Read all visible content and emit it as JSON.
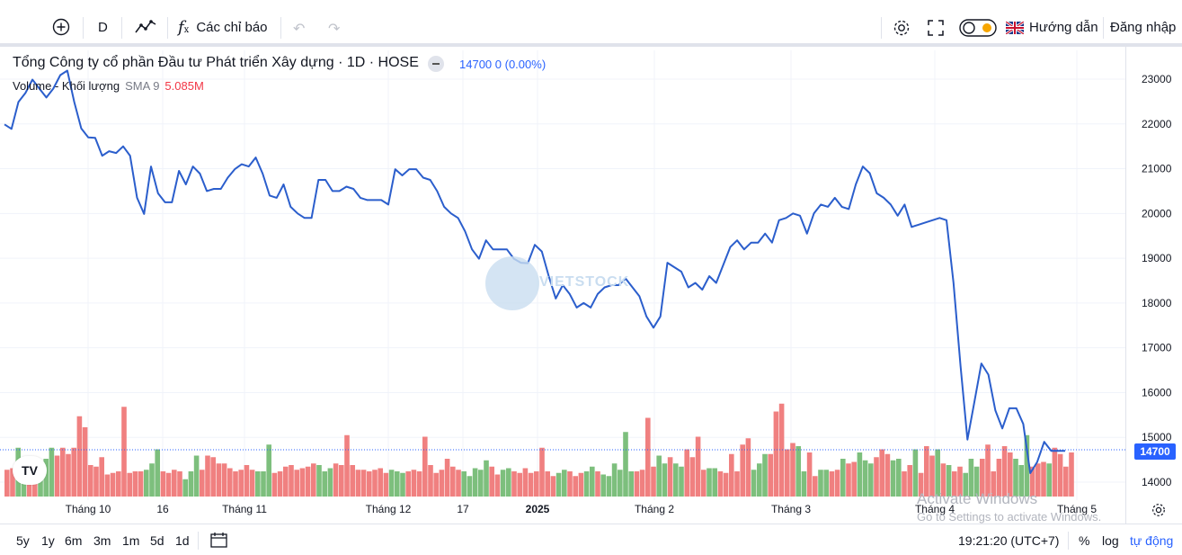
{
  "toolbar": {
    "interval": "D",
    "indicators_label": "Các chỉ báo",
    "guide_label": "Hướng dẫn",
    "login_label": "Đăng nhập"
  },
  "legend": {
    "title": "Tổng Công ty cổ phần Đầu tư Phát triển Xây dựng · 1D · HOSE",
    "price": "14700",
    "change": "0 (0.00%)",
    "volume_label": "Volume - Khối lượng",
    "sma_label": "SMA 9",
    "volume_value": "5.085M"
  },
  "price_tag": "14700",
  "watermark": {
    "logo_text": "VIETSTOCK",
    "os_line1": "Activate Windows",
    "os_line2": "Go to Settings to activate Windows."
  },
  "bottom": {
    "ranges": [
      "5y",
      "1y",
      "6m",
      "3m",
      "1m",
      "5d",
      "1d"
    ],
    "time": "19:21:20 (UTC+7)",
    "percent": "%",
    "log": "log",
    "auto": "tự động"
  },
  "colors": {
    "line": "#2b5ecc",
    "up_volume": "#7dbf7d",
    "down_volume": "#f08080",
    "accent": "#2962ff"
  },
  "chart_data": {
    "type": "line",
    "y_ticks": [
      14000,
      15000,
      16000,
      17000,
      18000,
      19000,
      20000,
      21000,
      22000,
      23000
    ],
    "ylim": [
      13700,
      23700
    ],
    "x_ticks": [
      "Tháng 10",
      "16",
      "Tháng 11",
      "Tháng 12",
      "17",
      "2025",
      "Tháng 2",
      "Tháng 3",
      "Tháng 4",
      "Tháng 5"
    ],
    "last_price": 14700,
    "series": [
      {
        "values": [
          21990,
          21890,
          22490,
          22690,
          22990,
          22790,
          22590,
          22790,
          23090,
          23190,
          22490,
          21900,
          21700,
          21690,
          21290,
          21390,
          21350,
          21500,
          21290,
          20350,
          19990,
          21050,
          20450,
          20250,
          20250,
          20950,
          20650,
          21050,
          20890,
          20500,
          20550,
          20550,
          20800,
          20990,
          21100,
          21050,
          21250,
          20890,
          20400,
          20350,
          20650,
          20150,
          20000,
          19900,
          19900,
          20750,
          20750,
          20500,
          20500,
          20600,
          20550,
          20350,
          20300,
          20300,
          20300,
          20200,
          20990,
          20850,
          20990,
          20990,
          20800,
          20750,
          20500,
          20150,
          20000,
          19900,
          19600,
          19200,
          18990,
          19400,
          19200,
          19200,
          19200,
          18990,
          18900,
          18890,
          19300,
          19150,
          18600,
          18100,
          18400,
          18200,
          17900,
          18000,
          17900,
          18200,
          18350,
          18400,
          18400,
          18550,
          18350,
          18150,
          17700,
          17450,
          17700,
          18900,
          18800,
          18700,
          18350,
          18450,
          18300,
          18600,
          18450,
          18850,
          19250,
          19400,
          19200,
          19350,
          19350,
          19550,
          19350,
          19850,
          19900,
          20000,
          19950,
          19550,
          20000,
          20200,
          20150,
          20350,
          20150,
          20100,
          20650,
          21050,
          20900,
          20450,
          20350,
          20200,
          19950,
          20200,
          19700,
          19750,
          19800,
          19850,
          19900,
          19850,
          18450,
          16600,
          14950,
          15800,
          16650,
          16400,
          15600,
          15200,
          15650,
          15650,
          15300,
          14200,
          14450,
          14900,
          14700,
          14700,
          14700
        ]
      }
    ],
    "volume": {
      "values": [
        1.7,
        1.8,
        3.1,
        2.0,
        1.8,
        1.9,
        2.1,
        2.4,
        3.1,
        2.6,
        3.1,
        2.7,
        3.1,
        5.1,
        4.4,
        2.0,
        1.9,
        2.5,
        1.4,
        1.5,
        1.6,
        5.7,
        1.5,
        1.6,
        1.6,
        1.7,
        2.1,
        3.0,
        1.6,
        1.5,
        1.7,
        1.6,
        1.1,
        1.6,
        2.6,
        1.7,
        2.6,
        2.5,
        2.1,
        2.1,
        1.8,
        1.6,
        1.7,
        2.0,
        1.7,
        1.6,
        1.6,
        3.3,
        1.5,
        1.6,
        1.9,
        2.0,
        1.7,
        1.8,
        1.9,
        2.1,
        2.0,
        1.6,
        1.8,
        2.1,
        2.0,
        3.9,
        2.0,
        1.7,
        1.7,
        1.6,
        1.7,
        1.8,
        1.5,
        1.7,
        1.6,
        1.5,
        1.6,
        1.7,
        1.6,
        3.8,
        2.0,
        1.5,
        1.7,
        2.4,
        1.9,
        1.7,
        1.6,
        1.3,
        1.8,
        1.7,
        2.3,
        1.9,
        1.4,
        1.7,
        1.8,
        1.6,
        1.5,
        1.8,
        1.5,
        1.6,
        3.1,
        1.6,
        1.3,
        1.5,
        1.7,
        1.6,
        1.3,
        1.5,
        1.6,
        1.9,
        1.6,
        1.4,
        1.3,
        2.1,
        1.7,
        4.1,
        1.6,
        1.6,
        1.7,
        5.0,
        1.9,
        2.6,
        2.1,
        2.5,
        2.1,
        1.9,
        3.0,
        2.5,
        3.8,
        1.7,
        1.8,
        1.8,
        1.6,
        1.5,
        2.7,
        1.6,
        3.3,
        3.7,
        1.7,
        2.1,
        2.7,
        2.7,
        5.4,
        5.9,
        3.0,
        3.4,
        3.2,
        1.6,
        2.8,
        1.3,
        1.7,
        1.7,
        1.6,
        1.7,
        2.4,
        2.1,
        2.2,
        2.8,
        2.3,
        2.1,
        2.5,
        3.0,
        2.7,
        2.3,
        2.4,
        1.6,
        2.0,
        3.0,
        1.5,
        3.2,
        2.6,
        3.0,
        2.1,
        2.0,
        1.6,
        1.9,
        1.5,
        2.4,
        1.9,
        2.4,
        3.3,
        1.6,
        2.4,
        3.2,
        2.8,
        2.4,
        2.0,
        3.9,
        1.9,
        2.1,
        2.2,
        2.1,
        3.1,
        2.7,
        1.9,
        2.8,
        4.6,
        3.2,
        2.2,
        1.4,
        2.3,
        3.1,
        1.8,
        3.0,
        2.1,
        2.3,
        2.1,
        1.3,
        1.9,
        2.1,
        1.6,
        4.3,
        3.6,
        3.2,
        1.7,
        2.1,
        1.7,
        2.2,
        5.4,
        4.9,
        4.5,
        3.7,
        2.4,
        2.3,
        3.6,
        6.1,
        4.0,
        2.3,
        4.0,
        3.1,
        2.8,
        1.9,
        1.6,
        3.5,
        3.0,
        2.9,
        2.7,
        2.3,
        1.8,
        2.1,
        2.6,
        1.9,
        1.8,
        1.8,
        1.6,
        1.7,
        1.9,
        1.8,
        2.1,
        2.1,
        1.8,
        1.7,
        1.6,
        1.5,
        1.3,
        1.6,
        1.8,
        1.9,
        2.0,
        2.1,
        2.0,
        1.9,
        1.8,
        1.7,
        1.6,
        1.5,
        1.7,
        1.9,
        2.0,
        1.8,
        1.7,
        1.6,
        1.5,
        1.6,
        1.7,
        1.8
      ],
      "up": [
        false,
        false,
        true,
        true,
        false,
        false,
        true,
        true,
        true,
        false,
        false,
        false,
        false,
        false,
        false,
        false,
        false,
        false,
        false,
        false,
        false,
        false,
        false,
        false,
        false,
        true,
        true,
        true,
        false,
        false,
        false,
        false,
        true,
        true,
        true,
        false,
        false,
        false,
        false,
        false,
        false,
        false,
        false,
        false,
        false,
        true,
        true,
        true,
        false,
        false,
        false,
        false,
        false,
        false,
        false,
        false,
        true,
        true,
        true,
        false,
        false,
        false,
        false,
        false,
        false,
        false,
        false,
        false,
        false,
        true,
        true,
        true,
        false,
        false,
        false,
        false,
        false,
        false,
        false,
        false,
        false,
        false,
        true,
        true,
        true,
        true,
        true,
        false,
        false,
        true,
        true,
        false,
        false,
        false,
        false,
        false,
        false,
        false,
        false,
        true,
        true,
        false,
        false,
        false,
        true,
        true,
        false,
        true,
        true,
        true,
        true,
        true,
        true,
        false,
        false,
        false,
        false,
        true,
        true,
        false,
        true,
        true,
        false,
        false,
        false,
        false,
        true,
        true,
        false,
        false,
        false,
        false,
        false,
        false,
        true,
        true,
        true,
        false,
        false,
        false,
        false,
        false,
        true,
        true,
        false,
        false,
        true,
        true,
        false,
        false,
        true,
        false,
        false,
        true,
        true,
        true,
        false,
        false,
        false,
        true,
        true,
        false,
        false,
        true,
        false,
        false,
        false,
        true,
        false,
        true,
        false,
        false,
        true,
        true,
        true,
        false,
        false,
        false,
        false,
        false,
        false,
        true,
        true,
        true,
        false,
        false,
        false,
        true,
        false,
        false,
        false,
        false,
        false,
        false,
        false,
        false,
        true,
        true,
        true,
        false,
        false,
        false,
        false,
        false,
        false,
        false,
        false,
        false,
        false,
        false,
        false,
        false,
        false,
        false,
        false,
        false,
        false,
        false,
        false,
        false,
        false,
        false,
        false,
        false,
        false,
        false,
        false,
        false,
        false,
        false,
        false,
        false,
        false,
        false,
        false,
        false,
        false,
        false,
        false,
        false,
        false,
        false,
        false,
        false,
        false,
        false,
        false,
        false,
        false,
        false,
        false,
        false,
        false,
        false,
        false,
        false,
        false,
        false,
        false,
        false,
        false,
        false,
        false,
        false,
        false,
        false,
        false,
        false,
        false,
        false,
        false,
        false,
        false,
        false,
        false,
        false,
        false
      ]
    }
  }
}
